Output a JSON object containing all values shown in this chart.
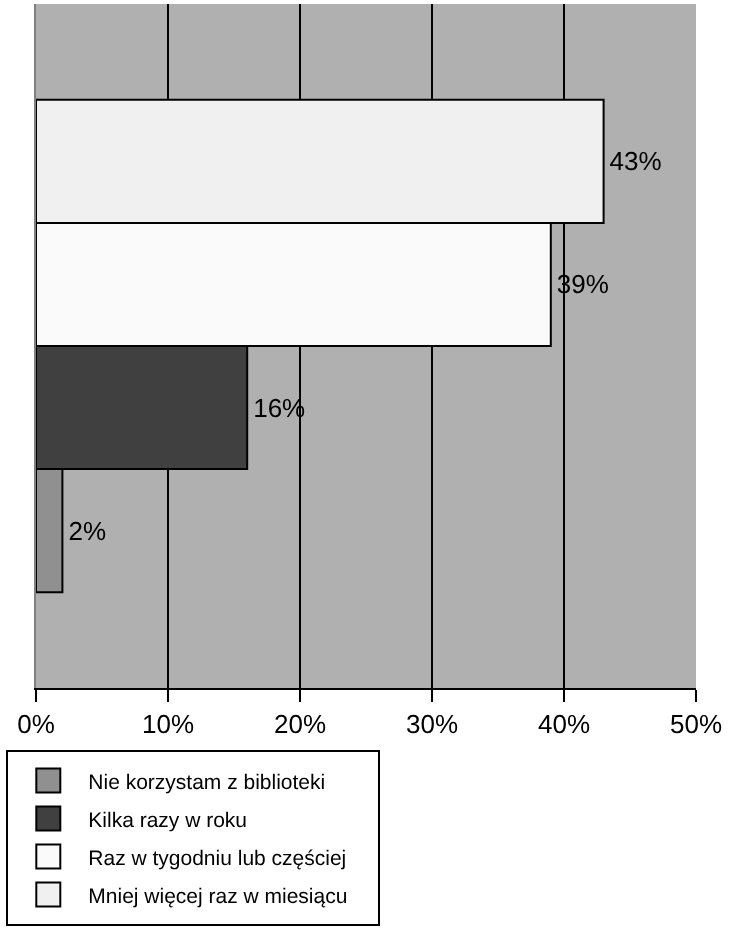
{
  "chart_data": {
    "type": "bar",
    "orientation": "horizontal",
    "categories": [
      null
    ],
    "series": [
      {
        "name": "Nie korzystam z biblioteki",
        "color": "#909090",
        "values": [
          2
        ],
        "value_labels": [
          "2%"
        ]
      },
      {
        "name": "Kilka razy w roku",
        "color": "#404040",
        "values": [
          16
        ],
        "value_labels": [
          "16%"
        ]
      },
      {
        "name": "Raz w tygodniu lub częściej",
        "color": "#fafafa",
        "values": [
          39
        ],
        "value_labels": [
          "39%"
        ]
      },
      {
        "name": "Mniej więcej raz w miesiącu",
        "color": "#f0f0f0",
        "values": [
          43
        ],
        "value_labels": [
          "43%"
        ]
      }
    ],
    "xlim": [
      0,
      50
    ],
    "xticks": [
      {
        "value": 0,
        "label": "0%"
      },
      {
        "value": 10,
        "label": "10%"
      },
      {
        "value": 20,
        "label": "20%"
      },
      {
        "value": 30,
        "label": "30%"
      },
      {
        "value": 40,
        "label": "40%"
      },
      {
        "value": 50,
        "label": "50%"
      }
    ],
    "grid": "x",
    "legend": "bottom",
    "tick_labels": "x"
  }
}
